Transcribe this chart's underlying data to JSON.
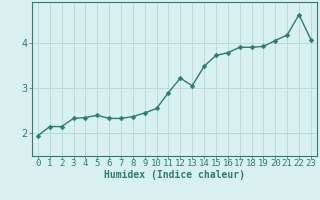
{
  "x": [
    0,
    1,
    2,
    3,
    4,
    5,
    6,
    7,
    8,
    9,
    10,
    11,
    12,
    13,
    14,
    15,
    16,
    17,
    18,
    19,
    20,
    21,
    22,
    23
  ],
  "y": [
    1.95,
    2.15,
    2.15,
    2.33,
    2.35,
    2.4,
    2.33,
    2.33,
    2.37,
    2.45,
    2.55,
    2.9,
    3.22,
    3.05,
    3.48,
    3.72,
    3.78,
    3.9,
    3.9,
    3.92,
    4.05,
    4.17,
    4.62,
    4.07
  ],
  "line_color": "#2d7d6e",
  "marker": "D",
  "marker_size": 2.5,
  "bg_color": "#d8f0f0",
  "grid_color": "#b8ddd8",
  "axis_color": "#2d7d6e",
  "xlabel": "Humidex (Indice chaleur)",
  "xlabel_fontsize": 7,
  "yticks": [
    2,
    3,
    4
  ],
  "ylim": [
    1.5,
    4.9
  ],
  "xlim": [
    -0.5,
    23.5
  ],
  "tick_fontsize": 6.5,
  "line_width": 1.0,
  "figsize": [
    3.2,
    2.0
  ],
  "dpi": 100
}
